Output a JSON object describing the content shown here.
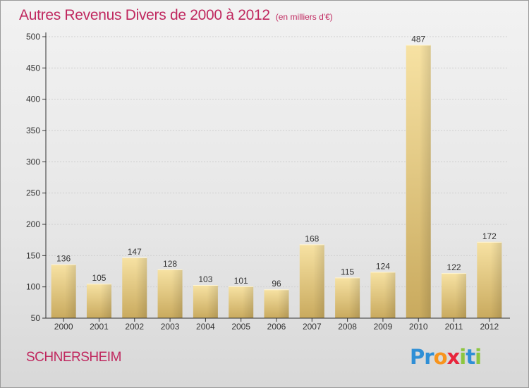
{
  "title": "Autres Revenus Divers de 2000 à 2012",
  "subtitle": "(en milliers d'€)",
  "commune": "SCHNERSHEIM",
  "logo": {
    "letters": [
      {
        "char": "P",
        "color": "#2f8fd6"
      },
      {
        "char": "r",
        "color": "#2f8fd6"
      },
      {
        "char": "o",
        "color": "#f7941d"
      },
      {
        "char": "x",
        "color": "#e8253c"
      },
      {
        "char": "i",
        "color": "#8dc63f"
      },
      {
        "char": "t",
        "color": "#2f8fd6"
      },
      {
        "char": "i",
        "color": "#8dc63f"
      }
    ]
  },
  "colors": {
    "title": "#c0285f",
    "bar_light": "#f7e2a3",
    "bar_dark": "#c9aa5e",
    "axis": "#333333",
    "grid": "#cfcfcf"
  },
  "chart_data": {
    "type": "bar",
    "categories": [
      "2000",
      "2001",
      "2002",
      "2003",
      "2004",
      "2005",
      "2006",
      "2007",
      "2008",
      "2009",
      "2010",
      "2011",
      "2012"
    ],
    "values": [
      136,
      105,
      147,
      128,
      103,
      101,
      96,
      168,
      115,
      124,
      487,
      122,
      172
    ],
    "yticks": [
      50,
      100,
      150,
      200,
      250,
      300,
      350,
      400,
      450,
      500
    ],
    "ylim": [
      50,
      500
    ],
    "grid": true,
    "data_labels": true
  }
}
